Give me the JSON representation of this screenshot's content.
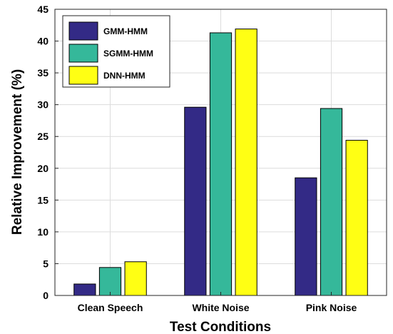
{
  "chart_data": {
    "type": "bar",
    "title": "",
    "xlabel": "Test Conditions",
    "ylabel": "Relative Improvement (%)",
    "categories": [
      "Clean Speech",
      "White Noise",
      "Pink Noise"
    ],
    "series": [
      {
        "name": "GMM-HMM",
        "color": "#332a86",
        "values": [
          1.8,
          29.6,
          18.5
        ]
      },
      {
        "name": "SGMM-HMM",
        "color": "#35b89a",
        "values": [
          4.4,
          41.3,
          29.4
        ]
      },
      {
        "name": "DNN-HMM",
        "color": "#ffff14",
        "values": [
          5.3,
          41.9,
          24.4
        ]
      }
    ],
    "ylim": [
      0,
      45
    ],
    "yticks": [
      0,
      5,
      10,
      15,
      20,
      25,
      30,
      35,
      40,
      45
    ],
    "grid": true,
    "legend_position": "top-left"
  }
}
